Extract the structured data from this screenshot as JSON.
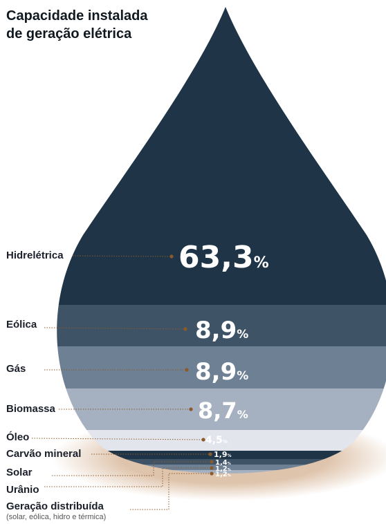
{
  "chart_data": {
    "type": "area",
    "title_lines": [
      "Capacidade instalada",
      "de geração elétrica"
    ],
    "unit": "%",
    "categories": [
      "Hidrelétrica",
      "Eólica",
      "Gás",
      "Biomassa",
      "Óleo",
      "Carvão mineral",
      "Solar",
      "Urânio",
      "Geração distribuída"
    ],
    "category_note": "(solar, eólica, hidro e térmica)",
    "value_labels": [
      "63,3",
      "8,9",
      "8,9",
      "8,7",
      "4,5",
      "1,9",
      "1,4",
      "1,2",
      "1,2"
    ],
    "values": [
      63.3,
      8.9,
      8.9,
      8.7,
      4.5,
      1.9,
      1.4,
      1.2,
      1.2
    ],
    "colors": [
      "#1f3447",
      "#3f5366",
      "#6e8094",
      "#a5b0c0",
      "#e2e5ec",
      "#1f3447",
      "#3f5366",
      "#6e8094",
      "#a5b0c0"
    ],
    "connector_color": "#8b5a2b",
    "glow_color": "#c49367"
  }
}
